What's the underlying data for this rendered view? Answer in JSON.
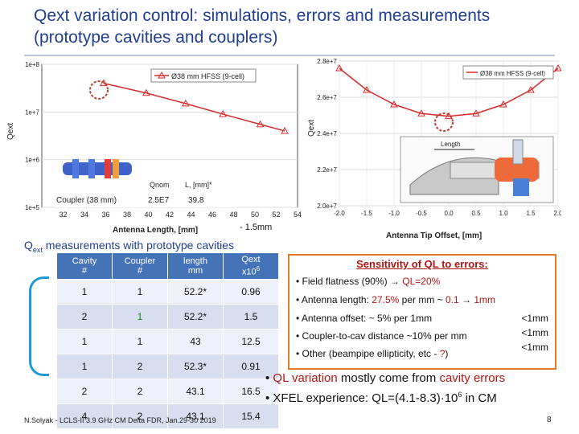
{
  "title": "Qext variation control:  simulations, errors and measurements (prototype cavities and couplers)",
  "left_chart": {
    "ylabel": "Qext",
    "xlabel": "Antenna Length, [mm]",
    "y_ticks": [
      "1e+8",
      "1e+7",
      "1e+6",
      "1e+5"
    ],
    "x_ticks": [
      "32",
      "34",
      "36",
      "38",
      "40",
      "42",
      "44",
      "46",
      "48",
      "50",
      "52",
      "54"
    ],
    "legend": "Ø38 mm HFSS (9-cell)",
    "annotation": "- 1.5mm",
    "table_headers": [
      "",
      "Qnom",
      "L, [mm]*"
    ],
    "table_row": [
      "Coupler (38 mm)",
      "2.5E7",
      "39.8"
    ]
  },
  "right_chart": {
    "ylabel": "Qext",
    "xlabel": "Antenna Tip Offset, [mm]",
    "y_ticks": [
      "2.8e+7",
      "2.6e+7",
      "2.4e+7",
      "2.2e+7",
      "2.0e+7"
    ],
    "x_ticks": [
      "-2.0",
      "-1.5",
      "-1.0",
      "-0.5",
      "0.0",
      "0.5",
      "1.0",
      "1.5",
      "2.0"
    ],
    "legend": "Ø38 mm HFSS (9-cell)",
    "inset_label": "Length"
  },
  "chart_data": [
    {
      "type": "line",
      "title": "",
      "xlabel": "Antenna Length, [mm]",
      "ylabel": "Qext",
      "yscale": "log",
      "xlim": [
        30,
        54
      ],
      "ylim": [
        100000,
        100000000
      ],
      "series": [
        {
          "name": "Ø38 mm HFSS (9-cell)",
          "x": [
            35.8,
            39.8,
            43.5,
            47,
            50.5,
            52.8
          ],
          "values": [
            40000000,
            25000000,
            15000000,
            9000000,
            5500000,
            4000000
          ]
        }
      ]
    },
    {
      "type": "line",
      "title": "",
      "xlabel": "Antenna Tip Offset, [mm]",
      "ylabel": "Qext",
      "xlim": [
        -2.0,
        2.0
      ],
      "ylim": [
        20000000,
        28000000
      ],
      "series": [
        {
          "name": "Ø38 mm HFSS (9-cell)",
          "x": [
            -2.0,
            -1.5,
            -1.0,
            -0.5,
            0.0,
            0.5,
            1.0,
            1.5,
            2.0
          ],
          "values": [
            27600000,
            26400000,
            25600000,
            25100000,
            24950000,
            25100000,
            25600000,
            26400000,
            27600000
          ]
        }
      ]
    }
  ],
  "measurements": {
    "subtitle_main": "Qext",
    "subtitle_sub": "ext",
    "subtitle_rest": "measurements with prototype cavities",
    "headers": [
      [
        "Cavity",
        "#"
      ],
      [
        "Coupler",
        "#"
      ],
      [
        "length",
        "mm"
      ],
      [
        "Qext",
        "x10"
      ]
    ],
    "qext_exp": "6",
    "rows": [
      [
        "1",
        "1",
        "52.2*",
        "0.96"
      ],
      [
        "2",
        "1",
        "52.2*",
        "1.5"
      ],
      [
        "1",
        "1",
        "43",
        "12.5"
      ],
      [
        "1",
        "2",
        "52.3*",
        "0.91"
      ],
      [
        "2",
        "2",
        "43.1",
        "16.5"
      ],
      [
        "4",
        "2",
        "43.1",
        "15.4"
      ]
    ]
  },
  "sensitivity": {
    "heading": "Sensitivity of QL to errors:",
    "l1a": "• Field flatness (90%)  ",
    "l1b": "  QL=20%",
    "l2a": "• Antenna length: ",
    "l2b": "27.5%",
    "l2c": " per mm ~ ",
    "l2d": "0.1",
    "l2e": "  1mm",
    "l3": "• Antenna offset: ~ 5% per 1mm",
    "l4": "• Coupler-to-cav distance ~10% per mm",
    "l5a": "• Other (beampipe ellipticity, etc - ",
    "l5b": "?",
    "l5c": ")",
    "r1": "<1mm",
    "r2": "<1mm",
    "r3": "<1mm"
  },
  "bullets": {
    "b1a": "• ",
    "b1b": "QL variation",
    "b1c": " mostly come from ",
    "b1d": "cavity errors",
    "b2a": "• ",
    "b2b": "XFEL experience: QL=(4.1-8.3)·10",
    "b2exp": "6",
    "b2c": " in CM"
  },
  "footer": "N.Solyak - LCLS-II 3.9 GHz CM Delta FDR, Jan.29-30 2019",
  "page_number": "8",
  "colors": {
    "title": "#1f3f8f",
    "curve": "#d62b2b",
    "table_header": "#4573b8",
    "accent": "#b31414"
  }
}
